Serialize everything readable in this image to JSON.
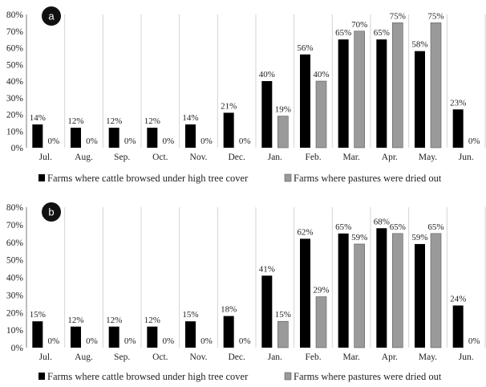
{
  "colors": {
    "series1": "#000000",
    "series2": "#9a9a9a",
    "grid": "#d4d4d4",
    "axis": "#7a7a7a",
    "badge": "#111111"
  },
  "chart_data": [
    {
      "type": "bar",
      "panel_label": "a",
      "categories": [
        "Jul.",
        "Aug.",
        "Sep.",
        "Oct.",
        "Nov.",
        "Dec.",
        "Jan.",
        "Feb.",
        "Mar.",
        "Apr.",
        "May.",
        "Jun."
      ],
      "series": [
        {
          "name": "Farms where cattle browsed under high tree cover",
          "values": [
            14,
            12,
            12,
            12,
            14,
            21,
            40,
            56,
            65,
            65,
            58,
            23
          ]
        },
        {
          "name": "Farms where pastures were dried out",
          "values": [
            0,
            0,
            0,
            0,
            0,
            0,
            19,
            40,
            70,
            75,
            75,
            0
          ]
        }
      ],
      "ylim": [
        0,
        80
      ],
      "yticks": [
        "0%",
        "10%",
        "20%",
        "30%",
        "40%",
        "50%",
        "60%",
        "70%",
        "80%"
      ],
      "grid": "vertical",
      "legend": "bottom"
    },
    {
      "type": "bar",
      "panel_label": "b",
      "categories": [
        "Jul.",
        "Aug.",
        "Sep.",
        "Oct.",
        "Nov.",
        "Dec.",
        "Jan.",
        "Feb.",
        "Mar.",
        "Apr.",
        "May.",
        "Jun."
      ],
      "series": [
        {
          "name": "Farms where cattle browsed under high tree cover",
          "values": [
            15,
            12,
            12,
            12,
            15,
            18,
            41,
            62,
            65,
            68,
            59,
            24
          ]
        },
        {
          "name": "Farms where pastures were dried out",
          "values": [
            0,
            0,
            0,
            0,
            0,
            0,
            15,
            29,
            59,
            65,
            65,
            0
          ]
        }
      ],
      "ylim": [
        0,
        80
      ],
      "yticks": [
        "0%",
        "10%",
        "20%",
        "30%",
        "40%",
        "50%",
        "60%",
        "70%",
        "80%"
      ],
      "grid": "vertical",
      "legend": "bottom"
    }
  ]
}
